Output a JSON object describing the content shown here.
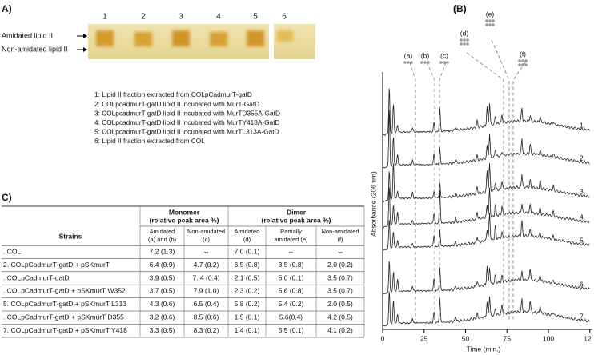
{
  "panel_a": {
    "label": "A)",
    "lanes": [
      "1",
      "2",
      "3",
      "4",
      "5",
      "6"
    ],
    "band_labels": [
      "Amidated lipid II",
      "Non-amidated lipid II"
    ],
    "legend": [
      "1: Lipid II fraction extracted from COLpCadmurT-gatD",
      "2: COLpcadmurT-gatD lipid II incubated with MurT-GatD",
      "3: COLpcadmurT-gatD lipid II incubated with MurTD355A-GatD",
      "4: COLpcadmurT-gatD lipid II incubated with MurTY418A-GatD",
      "5: COLpcadmurT-gatD lipid II incubated with MurTL313A-GatD",
      "6: Lipid II fraction extracted from COL"
    ]
  },
  "panel_b": {
    "label": "(B)",
    "peak_labels": [
      "(a)",
      "(b)",
      "(c)",
      "(d)",
      "(e)",
      "(f)"
    ],
    "y_label": "Absorbance (206 nm)",
    "x_label": "Time (min.)",
    "x_ticks": [
      "0",
      "25",
      "50",
      "75",
      "100",
      "12"
    ],
    "trace_labels": [
      "1.",
      "2.",
      "3.",
      "4.",
      "5.",
      "6.",
      "7."
    ]
  },
  "panel_c": {
    "label": "C)",
    "table": {
      "group_headers": [
        [
          "Monomer",
          "(relative peak area %)"
        ],
        [
          "Dimer",
          "(relative peak area %)"
        ]
      ],
      "strain_header": "Strains",
      "sub_headers": [
        [
          "Amidated",
          "(a) and (b)"
        ],
        [
          "Non-amidated",
          "(c)"
        ],
        [
          "Amidated",
          "(d)"
        ],
        [
          "Partially",
          "amidated (e)"
        ],
        [
          "Non-amidated",
          "(f)"
        ]
      ],
      "rows": [
        [
          ". COL",
          "7.2 (1.3)",
          "--",
          "7.0 (0.1)",
          "--",
          "--"
        ],
        [
          "2. COLpCadmurT-gatD + pSKmurT",
          "6.4 (0.9)",
          "4.7 (0.2)",
          "6.5 (0.8)",
          "3.5 (0.8)",
          "2.0 (0.2)"
        ],
        [
          ". COLpCadmurT-gatD",
          "3.9 (0.5)",
          "7. 4 (0.4)",
          "2.1 (0.5)",
          "5.0 (0.1)",
          "3.5 (0.7)"
        ],
        [
          ". COLpCadmurT-gatD + pSKmurT W352",
          "3.7 (0.5)",
          "7.9 (1.0)",
          "2.3 (0.2)",
          "5.6 (0.8)",
          "3.5 (0.7)"
        ],
        [
          "5. COLpCadmurT-gatD + pSKmurT L313",
          "4.3 (0.6)",
          "6.5 (0.4)",
          "5.8 (0.2)",
          "5.4 (0.2)",
          "2.0 (0.5)"
        ],
        [
          ". COLpCadmurT-gatD + pSKmurT D355",
          "3.2 (0.6)",
          "8.5 (0.6)",
          "1.5 (0.1)",
          "5.6(0.4)",
          "4.2 (0.5)"
        ],
        [
          "7. COLpCadmurT-gatD + pSKmurT Y418",
          "3.3 (0.5)",
          "8.3 (0.2)",
          "1.4 (0.1)",
          "5.5 (0.1)",
          "4.1 (0.2)"
        ]
      ]
    }
  }
}
